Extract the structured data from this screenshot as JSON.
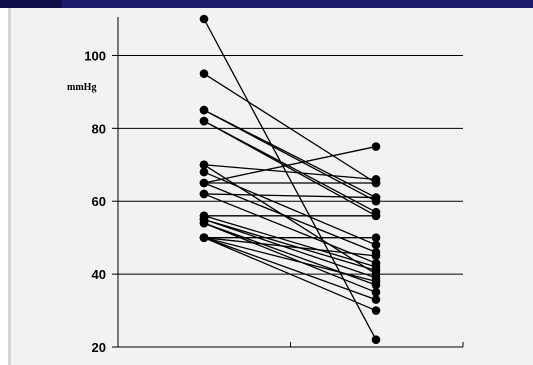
{
  "chart_data": {
    "type": "line",
    "ylabel": "mmHg",
    "ylim": [
      20,
      110
    ],
    "yticks": [
      20,
      40,
      60,
      80,
      100
    ],
    "grid": true,
    "x_categories": [
      "",
      ""
    ],
    "series": [
      {
        "values": [
          110,
          22
        ]
      },
      {
        "values": [
          95,
          65
        ]
      },
      {
        "values": [
          85,
          61
        ]
      },
      {
        "values": [
          85,
          60
        ]
      },
      {
        "values": [
          82,
          57
        ]
      },
      {
        "values": [
          82,
          56
        ]
      },
      {
        "values": [
          70,
          66
        ]
      },
      {
        "values": [
          70,
          40
        ]
      },
      {
        "values": [
          68,
          48
        ]
      },
      {
        "values": [
          65,
          75
        ]
      },
      {
        "values": [
          65,
          65
        ]
      },
      {
        "values": [
          65,
          46
        ]
      },
      {
        "values": [
          62,
          61
        ]
      },
      {
        "values": [
          62,
          43
        ]
      },
      {
        "values": [
          56,
          56
        ]
      },
      {
        "values": [
          56,
          42
        ]
      },
      {
        "values": [
          55,
          39
        ]
      },
      {
        "values": [
          55,
          41
        ]
      },
      {
        "values": [
          54,
          37
        ]
      },
      {
        "values": [
          54,
          35
        ]
      },
      {
        "values": [
          50,
          50
        ]
      },
      {
        "values": [
          50,
          45
        ]
      },
      {
        "values": [
          50,
          38
        ]
      },
      {
        "values": [
          50,
          33
        ]
      },
      {
        "values": [
          50,
          30
        ]
      }
    ]
  }
}
